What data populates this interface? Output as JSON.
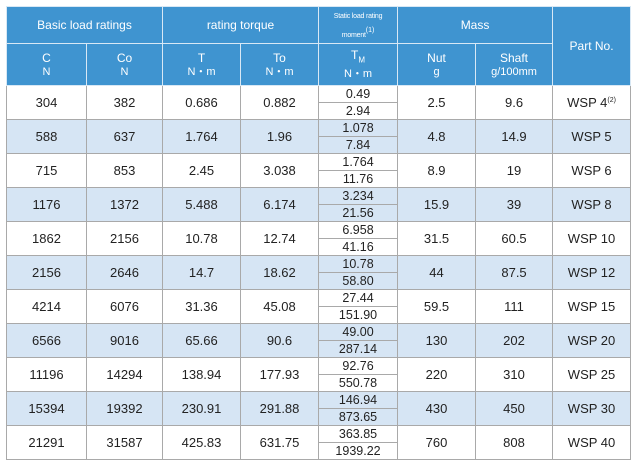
{
  "headers": {
    "basic_load": "Basic load ratings",
    "rating_torque": "rating torque",
    "static_moment": "Static load rating moment",
    "static_moment_note": "(1)",
    "mass": "Mass",
    "part_no": "Part No.",
    "c": {
      "sym": "C",
      "unit": "N"
    },
    "co": {
      "sym": "Co",
      "unit": "N"
    },
    "t": {
      "sym": "T",
      "unit": "N・m"
    },
    "to": {
      "sym": "To",
      "unit": "N・m"
    },
    "tm": {
      "sym": "T",
      "sub": "M",
      "unit": "N・m"
    },
    "nut": {
      "sym": "Nut",
      "unit": "g"
    },
    "shaft": {
      "sym": "Shaft",
      "unit": "g/100mm"
    }
  },
  "rows": [
    {
      "c": "304",
      "co": "382",
      "t": "0.686",
      "to": "0.882",
      "tm1": "0.49",
      "tm2": "2.94",
      "nut": "2.5",
      "shaft": "9.6",
      "part": "WSP  4",
      "note": "(2)"
    },
    {
      "c": "588",
      "co": "637",
      "t": "1.764",
      "to": "1.96",
      "tm1": "1.078",
      "tm2": "7.84",
      "nut": "4.8",
      "shaft": "14.9",
      "part": "WSP  5",
      "note": ""
    },
    {
      "c": "715",
      "co": "853",
      "t": "2.45",
      "to": "3.038",
      "tm1": "1.764",
      "tm2": "11.76",
      "nut": "8.9",
      "shaft": "19",
      "part": "WSP  6",
      "note": ""
    },
    {
      "c": "1176",
      "co": "1372",
      "t": "5.488",
      "to": "6.174",
      "tm1": "3.234",
      "tm2": "21.56",
      "nut": "15.9",
      "shaft": "39",
      "part": "WSP  8",
      "note": ""
    },
    {
      "c": "1862",
      "co": "2156",
      "t": "10.78",
      "to": "12.74",
      "tm1": "6.958",
      "tm2": "41.16",
      "nut": "31.5",
      "shaft": "60.5",
      "part": "WSP 10",
      "note": ""
    },
    {
      "c": "2156",
      "co": "2646",
      "t": "14.7",
      "to": "18.62",
      "tm1": "10.78",
      "tm2": "58.80",
      "nut": "44",
      "shaft": "87.5",
      "part": "WSP 12",
      "note": ""
    },
    {
      "c": "4214",
      "co": "6076",
      "t": "31.36",
      "to": "45.08",
      "tm1": "27.44",
      "tm2": "151.90",
      "nut": "59.5",
      "shaft": "111",
      "part": "WSP 15",
      "note": ""
    },
    {
      "c": "6566",
      "co": "9016",
      "t": "65.66",
      "to": "90.6",
      "tm1": "49.00",
      "tm2": "287.14",
      "nut": "130",
      "shaft": "202",
      "part": "WSP 20",
      "note": ""
    },
    {
      "c": "11196",
      "co": "14294",
      "t": "138.94",
      "to": "177.93",
      "tm1": "92.76",
      "tm2": "550.78",
      "nut": "220",
      "shaft": "310",
      "part": "WSP 25",
      "note": ""
    },
    {
      "c": "15394",
      "co": "19392",
      "t": "230.91",
      "to": "291.88",
      "tm1": "146.94",
      "tm2": "873.65",
      "nut": "430",
      "shaft": "450",
      "part": "WSP 30",
      "note": ""
    },
    {
      "c": "21291",
      "co": "31587",
      "t": "425.83",
      "to": "631.75",
      "tm1": "363.85",
      "tm2": "1939.22",
      "nut": "760",
      "shaft": "808",
      "part": "WSP 40",
      "note": ""
    }
  ]
}
